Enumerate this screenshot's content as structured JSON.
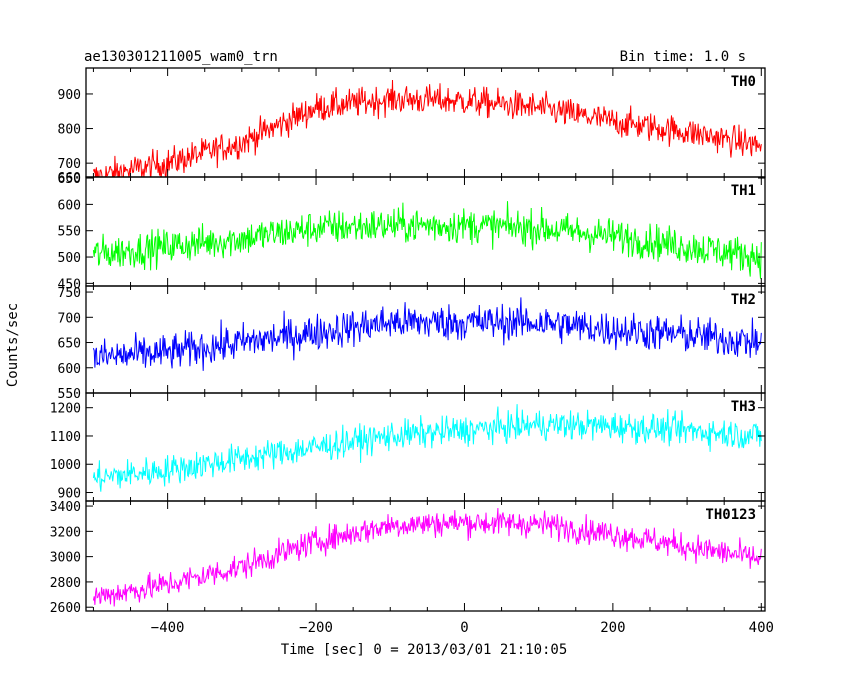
{
  "chart_data": {
    "type": "line",
    "title": "ae130301211005_wam0_trn",
    "subtitle": "Bin time: 1.0 s",
    "xlabel": "Time [sec] 0 = 2013/03/01 21:10:05",
    "ylabel": "Counts/sec",
    "xlim": [
      -510,
      405
    ],
    "x_ticks": [
      -400,
      -200,
      0,
      200,
      400
    ],
    "x_tick_labels": [
      "−400",
      "−200",
      "0",
      "200",
      "400"
    ],
    "grid": false,
    "bin_time_s": 1.0,
    "panels": [
      {
        "name": "TH0",
        "color": "#ff0000",
        "ylim": [
          660,
          975
        ],
        "y_ticks": [
          660,
          700,
          800,
          900
        ],
        "y_tick_labels": [
          "660",
          "700",
          "800",
          "900"
        ],
        "trend_x": [
          -500,
          -400,
          -300,
          -200,
          -100,
          0,
          100,
          200,
          300,
          400
        ],
        "trend_y": [
          660,
          700,
          760,
          860,
          885,
          880,
          860,
          820,
          790,
          750
        ],
        "noise": 45
      },
      {
        "name": "TH1",
        "color": "#00ff00",
        "ylim": [
          445,
          652
        ],
        "y_ticks": [
          450,
          500,
          550,
          600,
          650
        ],
        "y_tick_labels": [
          "450",
          "500",
          "550",
          "600",
          "650"
        ],
        "trend_x": [
          -500,
          -400,
          -300,
          -200,
          -100,
          0,
          100,
          200,
          300,
          400
        ],
        "trend_y": [
          505,
          520,
          535,
          555,
          560,
          560,
          555,
          540,
          520,
          500
        ],
        "noise": 35
      },
      {
        "name": "TH2",
        "color": "#0000ff",
        "ylim": [
          550,
          762
        ],
        "y_ticks": [
          550,
          600,
          650,
          700,
          750
        ],
        "y_tick_labels": [
          "550",
          "600",
          "650",
          "700",
          "750"
        ],
        "trend_x": [
          -500,
          -400,
          -300,
          -200,
          -100,
          0,
          100,
          200,
          300,
          400
        ],
        "trend_y": [
          620,
          630,
          650,
          670,
          690,
          690,
          690,
          675,
          665,
          650
        ],
        "noise": 38
      },
      {
        "name": "TH3",
        "color": "#00ffff",
        "ylim": [
          870,
          1252
        ],
        "y_ticks": [
          900,
          1000,
          1100,
          1200
        ],
        "y_tick_labels": [
          "900",
          "1000",
          "1100",
          "1200"
        ],
        "trend_x": [
          -500,
          -400,
          -300,
          -200,
          -100,
          0,
          100,
          200,
          300,
          400
        ],
        "trend_y": [
          950,
          980,
          1020,
          1060,
          1100,
          1120,
          1140,
          1135,
          1120,
          1100
        ],
        "noise": 55
      },
      {
        "name": "TH0123",
        "color": "#ff00ff",
        "ylim": [
          2570,
          3440
        ],
        "y_ticks": [
          2600,
          2800,
          3000,
          3200,
          3400
        ],
        "y_tick_labels": [
          "2600",
          "2800",
          "3000",
          "3200",
          "3400"
        ],
        "trend_x": [
          -500,
          -400,
          -300,
          -200,
          -100,
          0,
          100,
          200,
          300,
          400
        ],
        "trend_y": [
          2680,
          2780,
          2920,
          3120,
          3250,
          3270,
          3260,
          3180,
          3080,
          2980
        ],
        "noise": 110
      }
    ]
  }
}
